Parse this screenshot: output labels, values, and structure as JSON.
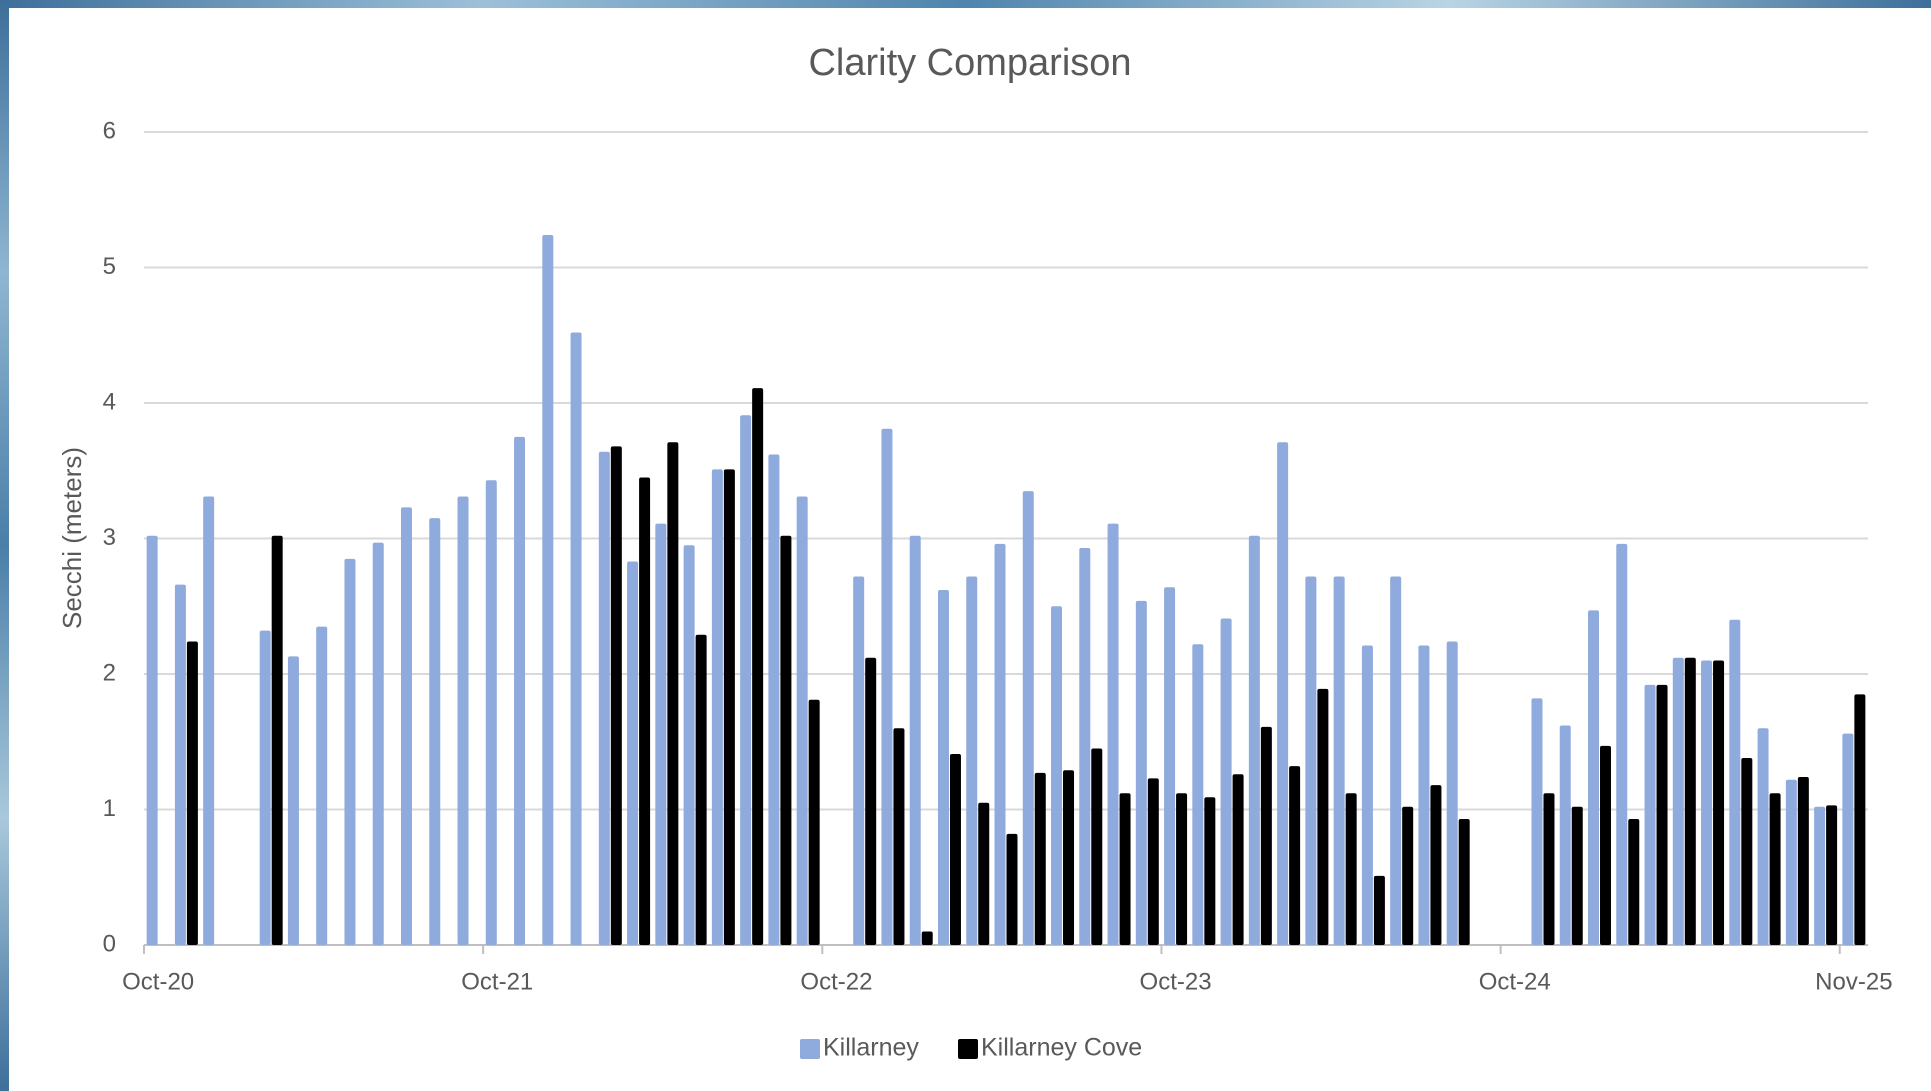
{
  "chart_data": {
    "type": "bar",
    "title": "Clarity Comparison",
    "y_label": "Secchi (meters)",
    "categories": [
      "Oct-20",
      null,
      null,
      null,
      null,
      null,
      null,
      null,
      null,
      null,
      null,
      null,
      "Oct-21",
      null,
      null,
      null,
      null,
      null,
      null,
      null,
      null,
      null,
      null,
      null,
      "Oct-22",
      null,
      null,
      null,
      null,
      null,
      null,
      null,
      null,
      null,
      null,
      null,
      "Oct-23",
      null,
      null,
      null,
      null,
      null,
      null,
      null,
      null,
      null,
      null,
      null,
      "Oct-24",
      null,
      null,
      null,
      null,
      null,
      null,
      null,
      null,
      null,
      null,
      null,
      "Nov-25"
    ],
    "series": [
      {
        "name": "Killarney",
        "color": "#8faadc",
        "values": [
          3.02,
          2.66,
          3.31,
          null,
          2.32,
          2.13,
          2.35,
          2.85,
          2.97,
          3.23,
          3.15,
          3.31,
          3.43,
          3.75,
          5.24,
          4.52,
          3.64,
          2.83,
          3.11,
          2.95,
          3.51,
          3.91,
          3.62,
          3.31,
          null,
          2.72,
          3.81,
          3.02,
          2.62,
          2.72,
          2.96,
          3.35,
          2.5,
          2.93,
          3.11,
          2.54,
          2.64,
          2.22,
          2.41,
          3.02,
          3.71,
          2.72,
          2.72,
          2.21,
          2.72,
          2.21,
          2.24,
          null,
          null,
          1.82,
          1.62,
          2.47,
          2.96,
          1.92,
          2.12,
          2.1,
          2.4,
          1.6,
          1.22,
          1.02,
          1.56
        ]
      },
      {
        "name": "Killarney Cove",
        "color": "#000000",
        "values": [
          null,
          2.24,
          null,
          null,
          3.02,
          null,
          null,
          null,
          null,
          null,
          null,
          null,
          null,
          null,
          null,
          null,
          3.68,
          3.45,
          3.71,
          2.29,
          3.51,
          4.11,
          3.02,
          1.81,
          null,
          2.12,
          1.6,
          0.1,
          1.41,
          1.05,
          0.82,
          1.27,
          1.29,
          1.45,
          1.12,
          1.23,
          1.12,
          1.09,
          1.26,
          1.61,
          1.32,
          1.89,
          1.12,
          0.51,
          1.02,
          1.18,
          0.93,
          null,
          null,
          1.12,
          1.02,
          1.47,
          0.93,
          1.92,
          2.12,
          2.1,
          1.38,
          1.12,
          1.24,
          1.03,
          1.85
        ]
      }
    ],
    "ylim": [
      0,
      6
    ],
    "yticks": [
      0,
      1,
      2,
      3,
      4,
      5,
      6
    ],
    "grid": true,
    "legend": "bottom"
  }
}
